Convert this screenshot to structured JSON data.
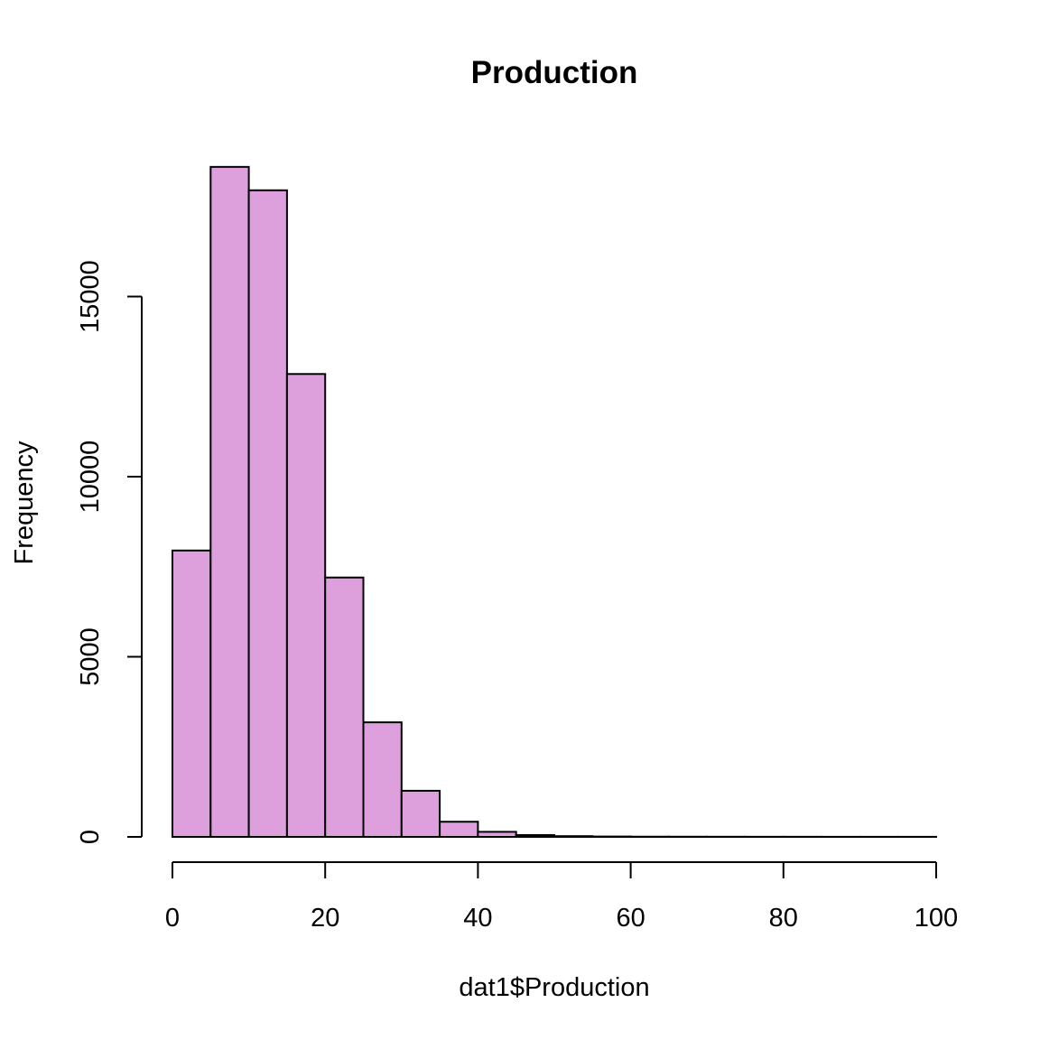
{
  "chart_data": {
    "type": "bar",
    "title": "Production",
    "xlabel": "dat1$Production",
    "ylabel": "Frequency",
    "bar_color": "#dda0dd",
    "bin_edges": [
      0,
      5,
      10,
      15,
      20,
      25,
      30,
      35,
      40,
      45,
      50,
      55,
      60,
      65,
      70,
      75,
      80,
      85,
      90,
      95,
      100
    ],
    "values": [
      7950,
      18600,
      17950,
      12850,
      7200,
      3180,
      1280,
      420,
      140,
      50,
      20,
      10,
      6,
      5,
      4,
      3,
      3,
      2,
      2,
      2
    ],
    "xlim": [
      0,
      100
    ],
    "ylim": [
      0,
      19000
    ],
    "x_ticks": [
      0,
      20,
      40,
      60,
      80,
      100
    ],
    "y_ticks": [
      0,
      5000,
      10000,
      15000
    ],
    "grid": false
  }
}
